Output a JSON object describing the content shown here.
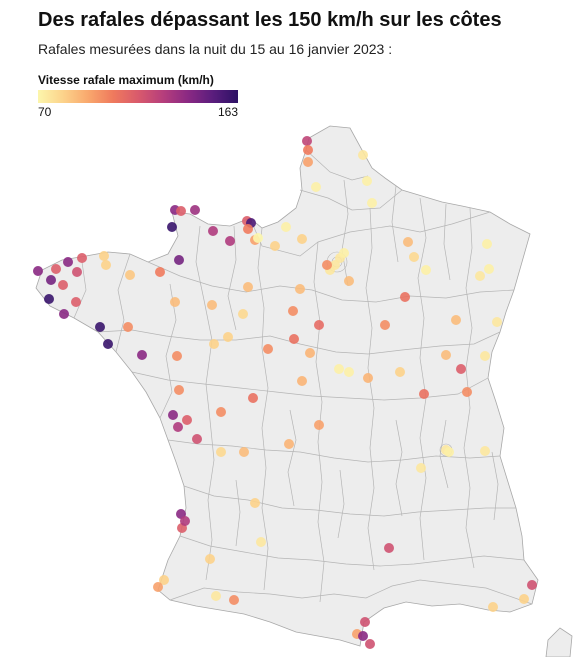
{
  "title": "Des rafales dépassant les 150 km/h sur les côtes",
  "subtitle": "Rafales mesurées dans la nuit du 15 au 16 janvier 2023 :",
  "legend": {
    "title": "Vitesse rafale maximum (km/h)",
    "min": 70,
    "max": 163,
    "min_label": "70",
    "max_label": "163",
    "color_stops": [
      "#fcf6ac",
      "#fcd38b",
      "#f9a86d",
      "#ef7a5d",
      "#d95a6c",
      "#b63e7c",
      "#8a2983",
      "#5a1d7d",
      "#2d1165"
    ]
  }
}
